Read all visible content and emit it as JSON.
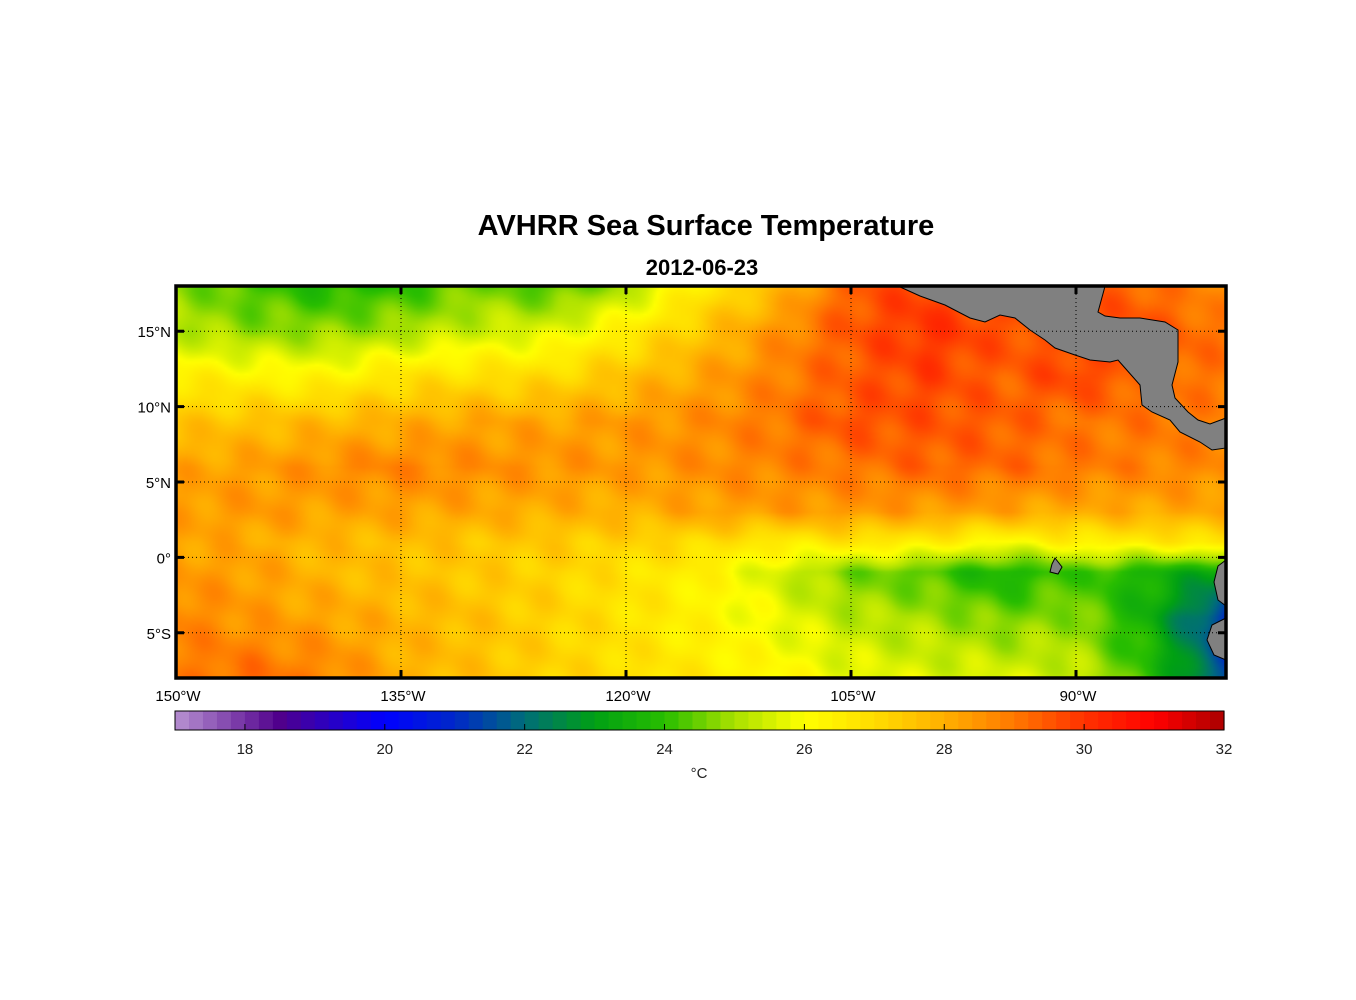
{
  "chart_data": {
    "type": "heatmap",
    "title": "AVHRR Sea Surface Temperature",
    "subtitle": "2012-06-23",
    "lon_range": [
      -150,
      -80
    ],
    "lat_range": [
      -8,
      18
    ],
    "x_ticks": [
      {
        "value": -150,
        "label": "150°W"
      },
      {
        "value": -135,
        "label": "135°W"
      },
      {
        "value": -120,
        "label": "120°W"
      },
      {
        "value": -105,
        "label": "105°W"
      },
      {
        "value": -90,
        "label": "90°W"
      }
    ],
    "y_ticks": [
      {
        "value": 15,
        "label": "15°N"
      },
      {
        "value": 10,
        "label": "10°N"
      },
      {
        "value": 5,
        "label": "5°N"
      },
      {
        "value": 0,
        "label": "0°"
      },
      {
        "value": -5,
        "label": "5°S"
      }
    ],
    "grid": true,
    "grid_lons": [
      -150,
      -145,
      -140,
      -135,
      -130,
      -125,
      -120,
      -115,
      -110,
      -105,
      -100,
      -95,
      -90,
      -85,
      -80
    ],
    "grid_lats": [
      18,
      15,
      12,
      9,
      6,
      3,
      1,
      -1,
      -4,
      -8
    ],
    "sst_values": [
      [
        24.8,
        24.2,
        23.8,
        24.0,
        24.6,
        24.2,
        25.0,
        26.6,
        27.6,
        29.4,
        29.8,
        29.5,
        29.5,
        29.2,
        28.5
      ],
      [
        25.2,
        24.8,
        24.8,
        25.0,
        25.4,
        25.6,
        26.5,
        27.5,
        28.5,
        29.5,
        30.0,
        29.6,
        29.5,
        29.6,
        29.0
      ],
      [
        26.5,
        26.3,
        26.2,
        26.8,
        26.9,
        27.0,
        27.6,
        28.2,
        28.8,
        29.4,
        29.8,
        29.3,
        29.8,
        29.2,
        29.0
      ],
      [
        27.5,
        27.6,
        27.8,
        28.0,
        28.2,
        28.2,
        28.4,
        28.6,
        29.0,
        29.6,
        29.5,
        29.4,
        29.0,
        29.0,
        28.8
      ],
      [
        28.2,
        28.3,
        28.6,
        28.8,
        28.6,
        28.5,
        28.4,
        28.6,
        28.8,
        29.0,
        29.3,
        29.2,
        29.0,
        28.8,
        28.7
      ],
      [
        28.3,
        28.4,
        28.2,
        28.2,
        28.1,
        28.0,
        27.9,
        28.2,
        28.3,
        28.4,
        28.3,
        28.2,
        28.0,
        28.1,
        28.1
      ],
      [
        28.2,
        28.1,
        27.8,
        27.7,
        27.5,
        27.4,
        27.2,
        27.0,
        26.5,
        26.7,
        26.5,
        26.0,
        26.4,
        26.5,
        26.8
      ],
      [
        28.4,
        28.3,
        27.8,
        27.6,
        27.4,
        27.2,
        26.8,
        26.4,
        25.5,
        24.6,
        24.3,
        23.6,
        24.2,
        23.6,
        23.0
      ],
      [
        28.8,
        28.4,
        28.2,
        27.9,
        27.6,
        27.2,
        26.8,
        26.3,
        25.8,
        25.2,
        25.0,
        24.6,
        24.8,
        23.4,
        21.0
      ],
      [
        28.9,
        29.2,
        28.8,
        28.0,
        27.6,
        27.2,
        26.9,
        26.6,
        26.2,
        25.8,
        25.6,
        25.6,
        25.4,
        24.0,
        21.5
      ]
    ],
    "colorbar": {
      "range": [
        17,
        32
      ],
      "ticks": [
        {
          "value": 18,
          "label": "18"
        },
        {
          "value": 20,
          "label": "20"
        },
        {
          "value": 22,
          "label": "22"
        },
        {
          "value": 24,
          "label": "24"
        },
        {
          "value": 26,
          "label": "26"
        },
        {
          "value": 28,
          "label": "28"
        },
        {
          "value": 30,
          "label": "30"
        },
        {
          "value": 32,
          "label": "32"
        }
      ],
      "unit": "°C"
    },
    "colors": {
      "land": "#808080",
      "frame": "#000000"
    }
  }
}
